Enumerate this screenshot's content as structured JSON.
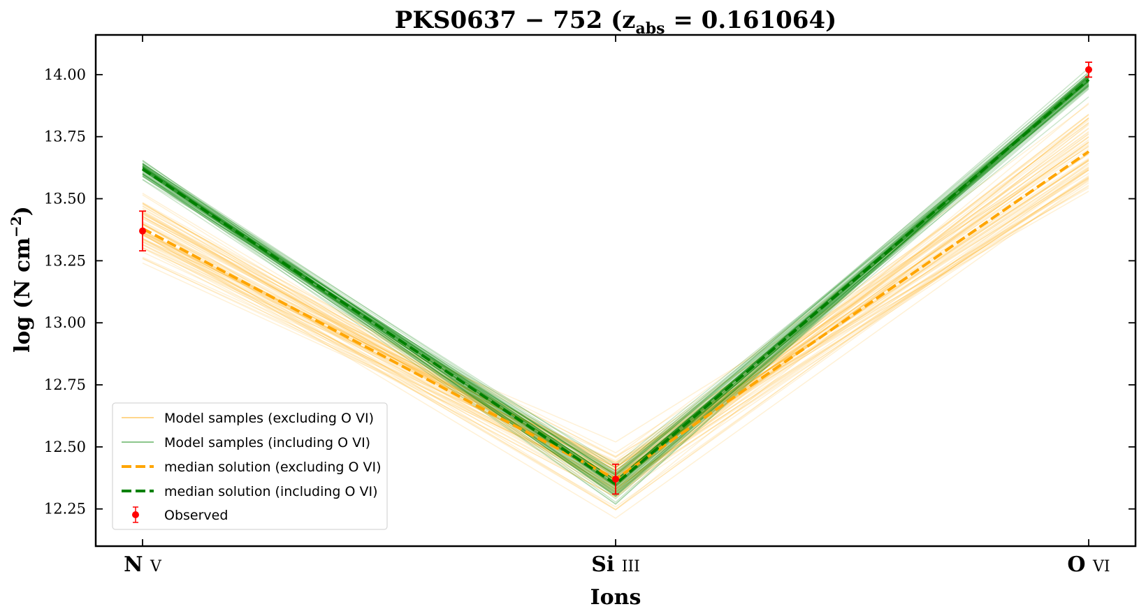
{
  "chart_data": {
    "type": "line",
    "title_main": "PKS0637 − 752 (z",
    "title_sub": "abs",
    "title_rest": " = 0.161064)",
    "xlabel": "Ions",
    "ylabel_main": "log (N cm",
    "ylabel_sup": "−2",
    "ylabel_close": ")",
    "categories": [
      {
        "element": "N",
        "stage": "V"
      },
      {
        "element": "Si",
        "stage": "III"
      },
      {
        "element": "O",
        "stage": "VI"
      }
    ],
    "ylim": [
      12.1,
      14.16
    ],
    "yticks": [
      "12.25",
      "12.50",
      "12.75",
      "13.00",
      "13.25",
      "13.50",
      "13.75",
      "14.00"
    ],
    "grid": false,
    "legend_position": "lower-left",
    "legend": {
      "samples_excluding": "Model samples (excluding O VI)",
      "samples_including": "Model samples (including O VI)",
      "median_excluding": "median solution (excluding O VI)",
      "median_including": "median solution (including O VI)",
      "observed": "Observed"
    },
    "series": [
      {
        "name": "median solution (excluding O VI)",
        "color": "#ffa500",
        "dashed": true,
        "values": [
          13.38,
          12.37,
          13.69
        ]
      },
      {
        "name": "median solution (including O VI)",
        "color": "#008000",
        "dashed": true,
        "values": [
          13.62,
          12.35,
          13.98
        ]
      }
    ],
    "sample_bands": [
      {
        "name": "Model samples (excluding O VI)",
        "color": "#ffa500",
        "n": 70,
        "center": [
          13.38,
          12.37,
          13.69
        ],
        "spread": [
          0.14,
          0.12,
          0.18
        ]
      },
      {
        "name": "Model samples (including O VI)",
        "color": "#008000",
        "n": 60,
        "center": [
          13.62,
          12.35,
          13.98
        ],
        "spread": [
          0.04,
          0.07,
          0.04
        ]
      }
    ],
    "observed": {
      "name": "Observed",
      "color": "#ff0000",
      "values": [
        13.37,
        12.37,
        14.02
      ],
      "errors": [
        0.08,
        0.06,
        0.03
      ]
    }
  }
}
